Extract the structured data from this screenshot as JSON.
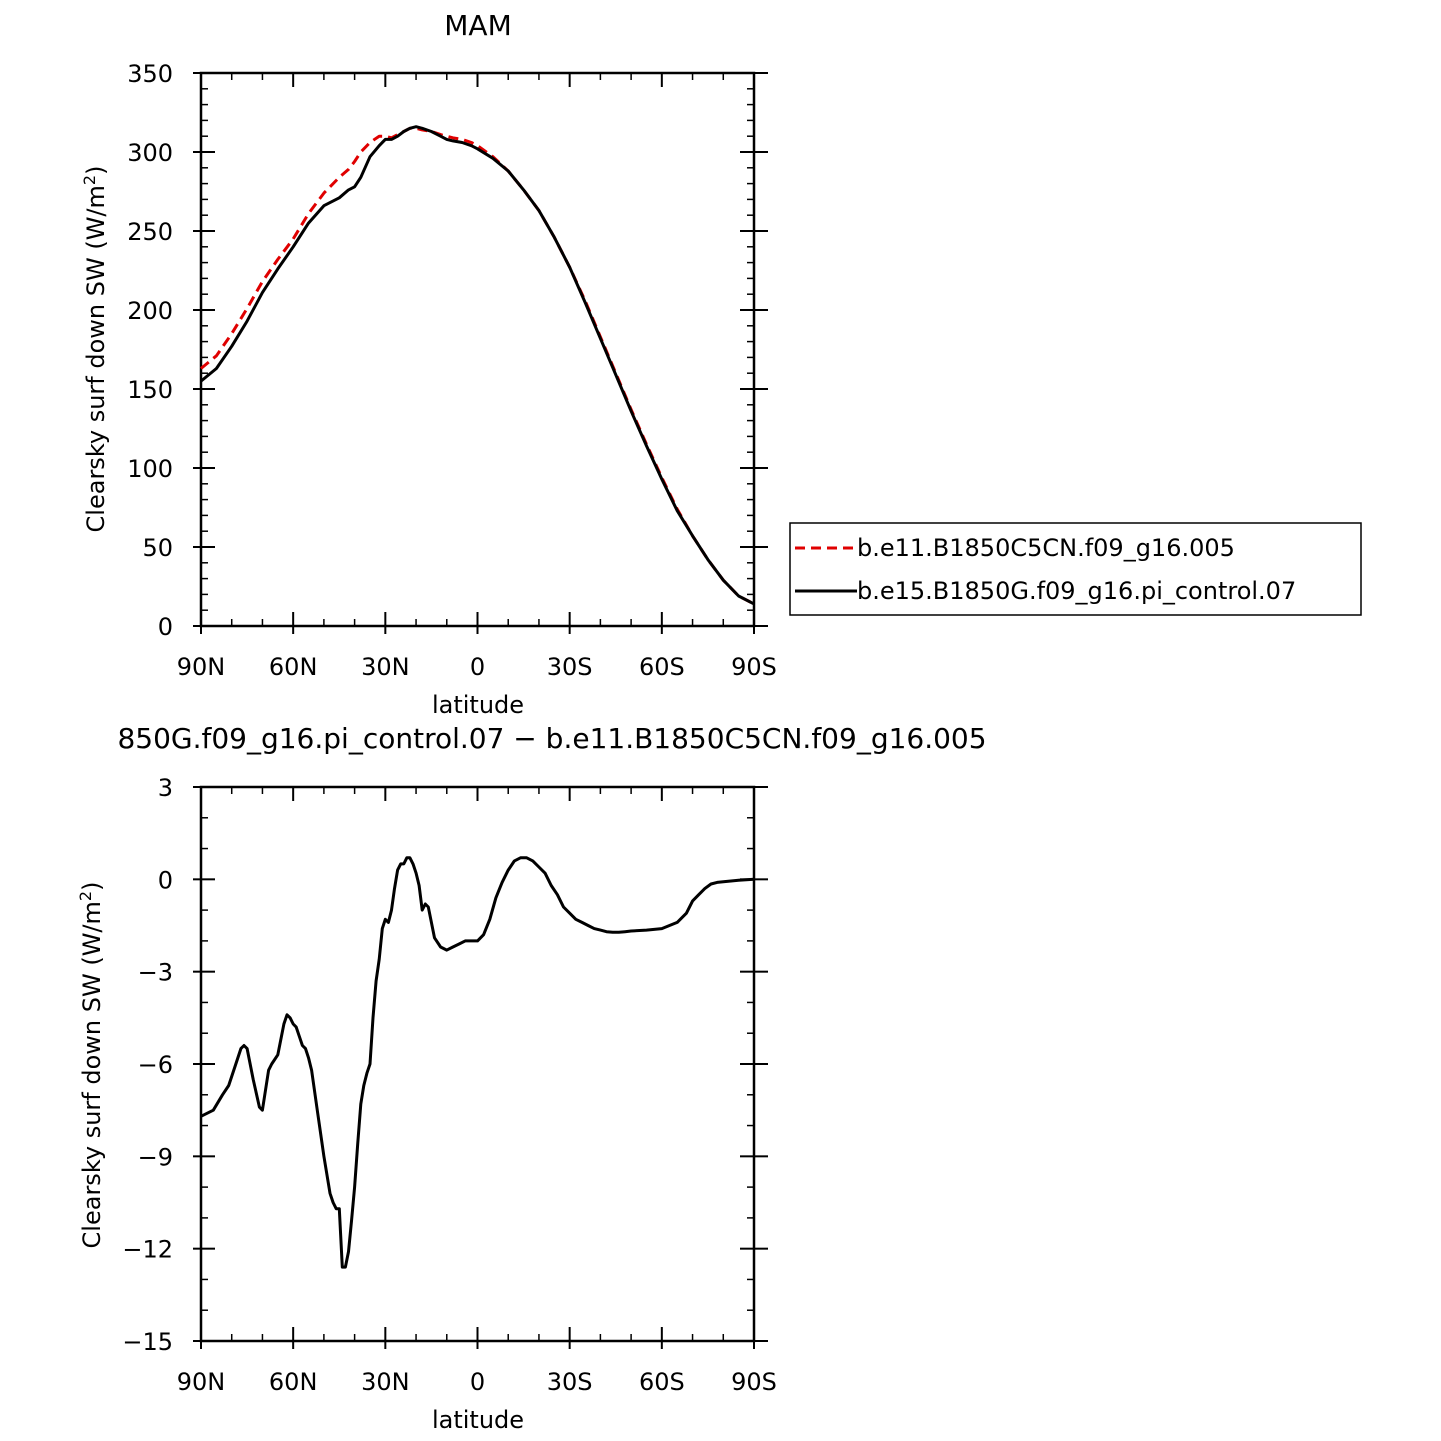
{
  "chart_data": [
    {
      "type": "line",
      "title": "MAM",
      "xlabel": "latitude",
      "ylabel": "Clearsky surf down SW (W/m²)",
      "x_tick_labels": [
        "90N",
        "60N",
        "30N",
        "0",
        "30S",
        "60S",
        "90S"
      ],
      "x_ticks": [
        90,
        60,
        30,
        0,
        -30,
        -60,
        -90
      ],
      "xlim": [
        90,
        -90
      ],
      "ylim": [
        0,
        350
      ],
      "y_ticks": [
        0,
        50,
        100,
        150,
        200,
        250,
        300,
        350
      ],
      "y_tick_labels": [
        "0",
        "50",
        "100",
        "150",
        "200",
        "250",
        "300",
        "350"
      ],
      "legend": "right",
      "x": [
        90,
        85,
        80,
        75,
        70,
        65,
        60,
        55,
        50,
        45,
        42,
        40,
        38,
        35,
        32,
        30,
        28,
        26,
        24,
        22,
        20,
        18,
        15,
        12,
        10,
        8,
        5,
        2,
        0,
        -5,
        -10,
        -15,
        -20,
        -25,
        -30,
        -35,
        -40,
        -45,
        -50,
        -55,
        -60,
        -65,
        -70,
        -75,
        -80,
        -85,
        -90
      ],
      "series": [
        {
          "name": "b.e11.B1850C5CN.f09_g16.005",
          "color": "#e00000",
          "dash": "dashed",
          "values": [
            163,
            171,
            185,
            201,
            218,
            232,
            245,
            261,
            274,
            284,
            289,
            294,
            300,
            306,
            310,
            310,
            309,
            311,
            313,
            315,
            315,
            314,
            313,
            311,
            310,
            309,
            308,
            306,
            304,
            297,
            288,
            276,
            263,
            246,
            227,
            206,
            183,
            160,
            137,
            115,
            94,
            74,
            57,
            42,
            29,
            19,
            14
          ]
        },
        {
          "name": "b.e15.B1850G.f09_g16.pi_control.07",
          "color": "#000000",
          "dash": "solid",
          "values": [
            155,
            163,
            177,
            193,
            211,
            226,
            240,
            255,
            266,
            271,
            276,
            278,
            284,
            297,
            304,
            308,
            308,
            310,
            313,
            315,
            316,
            315,
            313,
            310,
            308,
            307,
            306,
            304,
            302,
            296,
            288,
            276,
            263,
            246,
            227,
            205,
            182,
            159,
            136,
            114,
            93,
            73,
            57,
            42,
            29,
            19,
            14
          ]
        }
      ]
    },
    {
      "type": "line",
      "title": "850G.f09_g16.pi_control.07 − b.e11.B1850C5CN.f09_g16.005",
      "xlabel": "latitude",
      "ylabel": "Clearsky surf down SW (W/m²)",
      "x_tick_labels": [
        "90N",
        "60N",
        "30N",
        "0",
        "30S",
        "60S",
        "90S"
      ],
      "x_ticks": [
        90,
        60,
        30,
        0,
        -30,
        -60,
        -90
      ],
      "xlim": [
        90,
        -90
      ],
      "ylim": [
        -15,
        3
      ],
      "y_ticks": [
        -15,
        -12,
        -9,
        -6,
        -3,
        0,
        3
      ],
      "y_tick_labels": [
        "−15",
        "−12",
        "−9",
        "−6",
        "−3",
        "0",
        "3"
      ],
      "x": [
        90,
        86,
        83,
        81,
        79,
        77,
        76,
        75,
        73,
        71,
        70,
        68,
        67,
        65,
        63,
        62,
        61,
        60,
        59,
        58,
        57,
        56,
        55,
        54,
        52,
        50,
        48,
        47,
        46,
        45,
        44,
        43,
        42,
        41,
        40,
        39,
        38,
        37,
        36,
        35,
        34,
        33,
        32,
        31,
        30,
        29,
        28,
        27,
        26,
        25,
        24,
        23,
        22,
        21,
        20,
        19,
        18,
        17,
        16,
        14,
        12,
        10,
        8,
        6,
        4,
        2,
        0,
        -2,
        -4,
        -6,
        -8,
        -10,
        -12,
        -14,
        -16,
        -18,
        -20,
        -22,
        -24,
        -26,
        -28,
        -30,
        -32,
        -34,
        -36,
        -38,
        -40,
        -42,
        -44,
        -46,
        -48,
        -50,
        -55,
        -60,
        -65,
        -68,
        -70,
        -72,
        -74,
        -76,
        -78,
        -80,
        -85,
        -90
      ],
      "series": [
        {
          "name": "",
          "color": "#000000",
          "dash": "solid",
          "values": [
            -7.7,
            -7.5,
            -7.0,
            -6.7,
            -6.1,
            -5.5,
            -5.4,
            -5.5,
            -6.5,
            -7.4,
            -7.5,
            -6.2,
            -6.0,
            -5.7,
            -4.7,
            -4.4,
            -4.5,
            -4.7,
            -4.8,
            -5.1,
            -5.4,
            -5.5,
            -5.8,
            -6.2,
            -7.6,
            -9.0,
            -10.2,
            -10.5,
            -10.7,
            -10.7,
            -12.6,
            -12.6,
            -12.1,
            -11.1,
            -10.0,
            -8.6,
            -7.3,
            -6.7,
            -6.3,
            -6.0,
            -4.5,
            -3.3,
            -2.6,
            -1.6,
            -1.3,
            -1.4,
            -1.0,
            -0.3,
            0.3,
            0.5,
            0.5,
            0.7,
            0.7,
            0.5,
            0.2,
            -0.2,
            -1.0,
            -0.8,
            -0.9,
            -1.9,
            -2.2,
            -2.3,
            -2.2,
            -2.1,
            -2.0,
            -2.0,
            -2.0,
            -1.8,
            -1.3,
            -0.6,
            -0.1,
            0.3,
            0.6,
            0.7,
            0.7,
            0.6,
            0.4,
            0.2,
            -0.2,
            -0.5,
            -0.9,
            -1.1,
            -1.3,
            -1.4,
            -1.5,
            -1.6,
            -1.65,
            -1.7,
            -1.72,
            -1.72,
            -1.7,
            -1.68,
            -1.65,
            -1.6,
            -1.4,
            -1.1,
            -0.7,
            -0.5,
            -0.3,
            -0.15,
            -0.1,
            -0.08,
            -0.03,
            0.0
          ]
        }
      ]
    }
  ]
}
